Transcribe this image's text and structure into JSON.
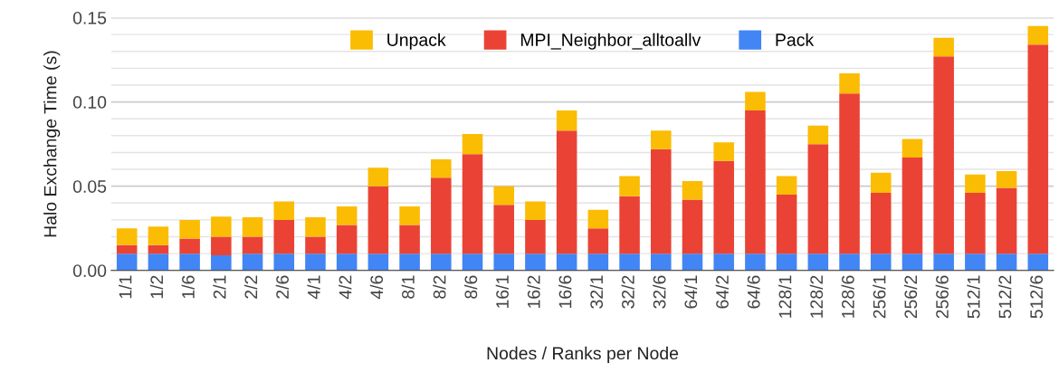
{
  "chart_data": {
    "type": "bar",
    "stacked": true,
    "xlabel": "Nodes / Ranks per Node",
    "ylabel": "Halo Exchange Time (s)",
    "categories": [
      "1/1",
      "1/2",
      "1/6",
      "2/1",
      "2/2",
      "2/6",
      "4/1",
      "4/2",
      "4/6",
      "8/1",
      "8/2",
      "8/6",
      "16/1",
      "16/2",
      "16/6",
      "32/1",
      "32/2",
      "32/6",
      "64/1",
      "64/2",
      "64/6",
      "128/1",
      "128/2",
      "128/6",
      "256/1",
      "256/2",
      "256/6",
      "512/1",
      "512/2",
      "512/6"
    ],
    "series": [
      {
        "name": "Pack",
        "color": "#4285f4",
        "values": [
          0.01,
          0.01,
          0.01,
          0.009,
          0.01,
          0.01,
          0.01,
          0.01,
          0.01,
          0.01,
          0.01,
          0.01,
          0.01,
          0.01,
          0.01,
          0.01,
          0.01,
          0.01,
          0.01,
          0.01,
          0.01,
          0.01,
          0.01,
          0.01,
          0.01,
          0.01,
          0.01,
          0.01,
          0.01,
          0.01
        ]
      },
      {
        "name": "MPI_Neighbor_alltoallv",
        "color": "#ea4335",
        "values": [
          0.005,
          0.005,
          0.009,
          0.011,
          0.01,
          0.02,
          0.01,
          0.017,
          0.04,
          0.017,
          0.045,
          0.059,
          0.029,
          0.02,
          0.073,
          0.015,
          0.034,
          0.062,
          0.032,
          0.055,
          0.085,
          0.035,
          0.065,
          0.095,
          0.036,
          0.057,
          0.117,
          0.036,
          0.039,
          0.124
        ]
      },
      {
        "name": "Unpack",
        "color": "#fbbc04",
        "values": [
          0.01,
          0.011,
          0.011,
          0.012,
          0.0115,
          0.011,
          0.0115,
          0.011,
          0.011,
          0.011,
          0.011,
          0.012,
          0.011,
          0.011,
          0.012,
          0.011,
          0.012,
          0.011,
          0.011,
          0.011,
          0.011,
          0.011,
          0.011,
          0.012,
          0.012,
          0.011,
          0.011,
          0.011,
          0.01,
          0.011
        ]
      }
    ],
    "ylim": [
      0,
      0.15
    ],
    "yticks": [
      {
        "value": 0,
        "label": "0.00"
      },
      {
        "value": 0.01,
        "label": null
      },
      {
        "value": 0.02,
        "label": null
      },
      {
        "value": 0.03,
        "label": null
      },
      {
        "value": 0.04,
        "label": null
      },
      {
        "value": 0.05,
        "label": "0.05"
      },
      {
        "value": 0.06,
        "label": null
      },
      {
        "value": 0.07,
        "label": null
      },
      {
        "value": 0.08,
        "label": null
      },
      {
        "value": 0.09,
        "label": null
      },
      {
        "value": 0.1,
        "label": "0.10"
      },
      {
        "value": 0.11,
        "label": null
      },
      {
        "value": 0.12,
        "label": null
      },
      {
        "value": 0.13,
        "label": null
      },
      {
        "value": 0.14,
        "label": null
      },
      {
        "value": 0.15,
        "label": "0.15"
      }
    ],
    "grid": "y",
    "legend": "top"
  }
}
